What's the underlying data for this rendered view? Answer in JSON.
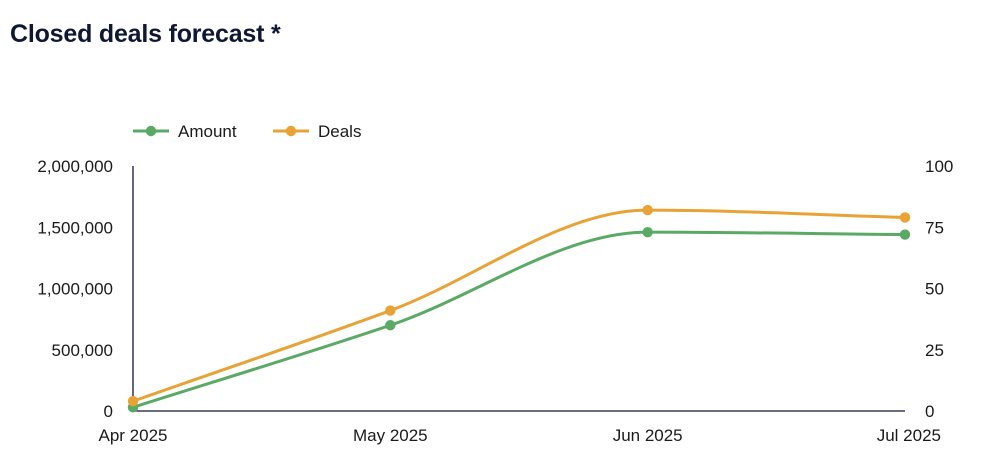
{
  "chart_data": {
    "type": "line",
    "title": "Closed deals forecast *",
    "categories": [
      "Apr 2025",
      "May 2025",
      "Jun 2025",
      "Jul 2025"
    ],
    "y_left": {
      "ylim": [
        0,
        2000000
      ],
      "ticks": [
        0,
        500000,
        1000000,
        1500000,
        2000000
      ],
      "tick_labels": [
        "0",
        "500,000",
        "1,000,000",
        "1,500,000",
        "2,000,000"
      ]
    },
    "y_right": {
      "ylim": [
        0,
        100
      ],
      "ticks": [
        0,
        25,
        50,
        75,
        100
      ],
      "tick_labels": [
        "0",
        "25",
        "50",
        "75",
        "100"
      ]
    },
    "series": [
      {
        "name": "Amount",
        "axis": "left",
        "color": "#5aa965",
        "values": [
          30000,
          700000,
          1460000,
          1440000
        ]
      },
      {
        "name": "Deals",
        "axis": "right",
        "color": "#e8a236",
        "values": [
          4,
          41,
          82,
          79
        ]
      }
    ],
    "legend_position": "top-left",
    "grid": false
  }
}
